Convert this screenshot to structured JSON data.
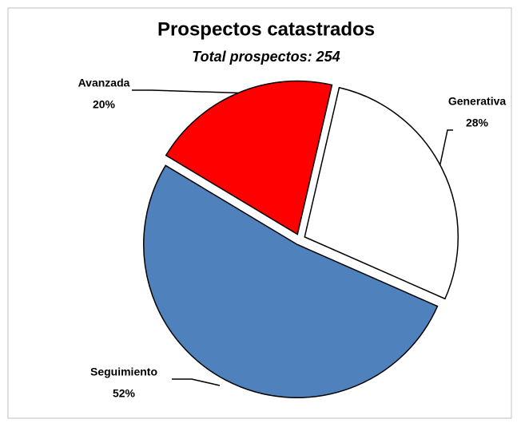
{
  "chart_data": {
    "type": "pie",
    "title": "Prospectos catastrados",
    "subtitle": "Total prospectos: 254",
    "categories": [
      "Generativa",
      "Seguimiento",
      "Avanzada"
    ],
    "values": [
      28,
      52,
      20
    ],
    "value_labels": [
      "28%",
      "52%",
      "20%"
    ],
    "colors": [
      "#ffffff",
      "#4f81bd",
      "#ff0000"
    ]
  }
}
